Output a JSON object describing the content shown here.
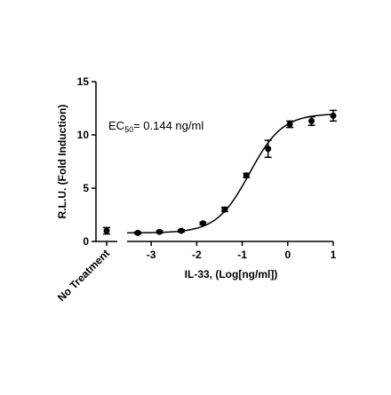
{
  "chart_data": {
    "type": "scatter",
    "annotation": {
      "text": "EC",
      "subscript": "50",
      "rest": "= 0.144 ng/ml"
    },
    "xlabel": "IL-33, (Log[ng/ml])",
    "ylabel": "R.L.U. (Fold Induction)",
    "control": {
      "category": "No Treatment",
      "value": 1.0,
      "error": 0.3
    },
    "x": [
      -3.294,
      -2.817,
      -2.34,
      -1.863,
      -1.385,
      -0.908,
      -0.431,
      0.046,
      0.523,
      1
    ],
    "values": [
      0.8,
      0.9,
      1.0,
      1.7,
      3.0,
      6.2,
      8.7,
      11.0,
      11.3,
      11.8
    ],
    "errors": [
      0.1,
      0.1,
      0.1,
      0.1,
      0.2,
      0.2,
      0.8,
      0.3,
      0.4,
      0.5
    ],
    "fit": {
      "bottom": 0.8,
      "top": 12,
      "log_ec50": -0.84,
      "hill": 1.2
    },
    "color": "#000000",
    "xlim": [
      -3.53,
      1
    ],
    "xticks": [
      -3,
      -2,
      -1,
      0,
      1
    ],
    "ylim": [
      0,
      15
    ],
    "yticks": [
      0,
      5,
      10,
      15
    ]
  }
}
